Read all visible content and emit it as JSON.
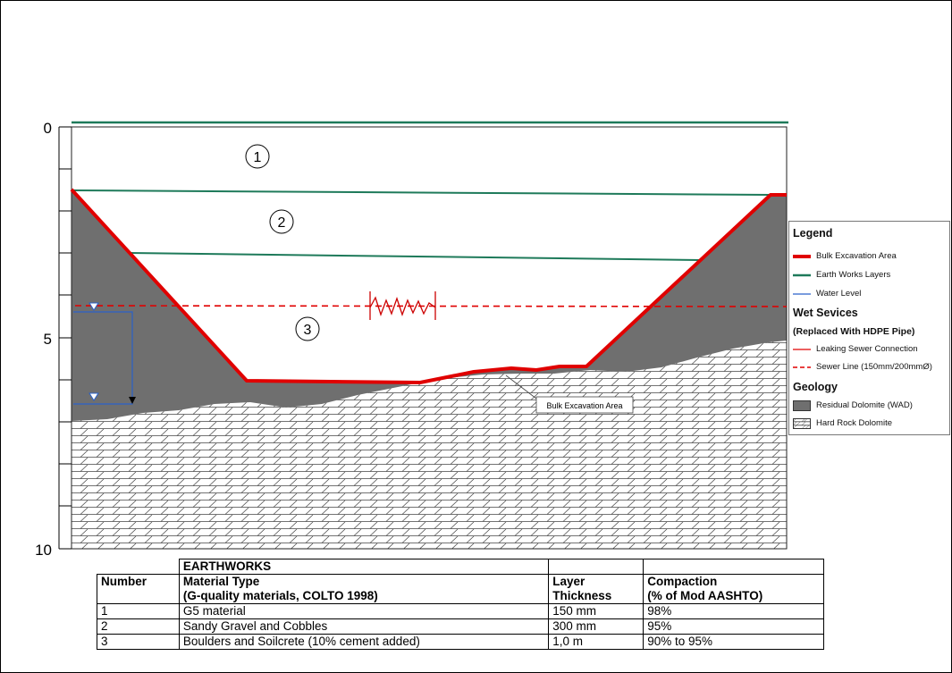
{
  "axis": {
    "ticks": [
      {
        "depth": 0,
        "label": "0"
      },
      {
        "depth": 5,
        "label": "5"
      },
      {
        "depth": 10,
        "label": "10"
      }
    ]
  },
  "layers": [
    {
      "number": "1"
    },
    {
      "number": "2"
    },
    {
      "number": "3"
    }
  ],
  "callout": {
    "text": "Bulk Excavation Area"
  },
  "legend": {
    "title": "Legend",
    "items": [
      {
        "label": "Bulk Excavation Area",
        "symbol": "thick-line",
        "color": "#e00000"
      },
      {
        "label": "Earth Works Layers",
        "symbol": "line",
        "color": "#1e7a5a"
      },
      {
        "label": "Water Level",
        "symbol": "thin-line",
        "color": "#2a62c9"
      }
    ],
    "wet_title": "Wet Sevices",
    "wet_subtitle": "(Replaced With HDPE Pipe)",
    "wet_items": [
      {
        "label": "Leaking Sewer Connection",
        "symbol": "thin-line",
        "color": "#e00000"
      },
      {
        "label": "Sewer Line (150mm/200mmØ)",
        "symbol": "dashed-line",
        "color": "#e00000"
      }
    ],
    "geo_title": "Geology",
    "geo_items": [
      {
        "label": "Residual Dolomite (WAD)",
        "symbol": "fill",
        "color": "#6f6f6f"
      },
      {
        "label": "Hard Rock Dolomite",
        "symbol": "hatch",
        "color": "#ffffff"
      }
    ]
  },
  "table": {
    "group_header": "EARTHWORKS",
    "headers": {
      "number": "Number",
      "material_1": "Material Type",
      "material_2": "(G-quality materials, COLTO 1998)",
      "thickness_1": "Layer",
      "thickness_2": "Thickness",
      "compaction_1": "Compaction",
      "compaction_2": "(% of Mod AASHTO)"
    },
    "rows": [
      {
        "number": "1",
        "material": "G5 material",
        "thickness": "150 mm",
        "compaction": "98%"
      },
      {
        "number": "2",
        "material": "Sandy Gravel and Cobbles",
        "thickness": "300 mm",
        "compaction": "95%"
      },
      {
        "number": "3",
        "material": "Boulders and Soilcrete (10% cement added)",
        "thickness": "1,0 m",
        "compaction": "90% to 95%"
      }
    ]
  },
  "colors": {
    "excavation": "#e00000",
    "earthworks": "#1e7a5a",
    "water": "#2a62c9",
    "residual_dolomite": "#6f6f6f",
    "hard_rock_lines": "#444444"
  }
}
